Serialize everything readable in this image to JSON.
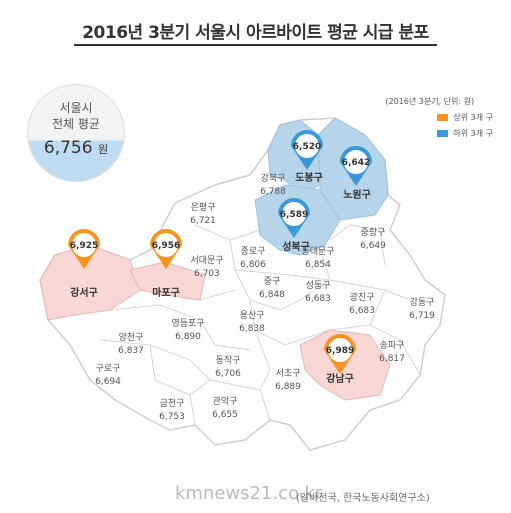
{
  "title": "2016년 3분기 서울시 아르바이트 평균 시급 분포",
  "average": {
    "line1": "서울시",
    "line2": "전체 평균",
    "value": "6,756",
    "unit": "원"
  },
  "legend": {
    "note": "(2016년 3분기, 단위: 원)",
    "items": [
      {
        "label": "상위 3개 구",
        "color": "#f7931e"
      },
      {
        "label": "하위 3개 구",
        "color": "#3a9ad9"
      }
    ]
  },
  "districts": [
    {
      "name": "은평구",
      "value": "6,721"
    },
    {
      "name": "강북구",
      "value": "6,788"
    },
    {
      "name": "서대문구",
      "value": "6,703"
    },
    {
      "name": "종로구",
      "value": "6,806"
    },
    {
      "name": "동대문구",
      "value": "6,854"
    },
    {
      "name": "중랑구",
      "value": "6,649"
    },
    {
      "name": "중구",
      "value": "6,848"
    },
    {
      "name": "성동구",
      "value": "6,683"
    },
    {
      "name": "광진구",
      "value": "6,683"
    },
    {
      "name": "강동구",
      "value": "6,719"
    },
    {
      "name": "용산구",
      "value": "6,838"
    },
    {
      "name": "양천구",
      "value": "6,837"
    },
    {
      "name": "영등포구",
      "value": "6,890"
    },
    {
      "name": "구로구",
      "value": "6,694"
    },
    {
      "name": "동작구",
      "value": "6,706"
    },
    {
      "name": "서초구",
      "value": "6,889"
    },
    {
      "name": "송파구",
      "value": "6,817"
    },
    {
      "name": "금천구",
      "value": "6,753"
    },
    {
      "name": "관악구",
      "value": "6,655"
    }
  ],
  "highlighted": [
    {
      "name": "강서구",
      "value": "6,925",
      "group": "top"
    },
    {
      "name": "마포구",
      "value": "6,956",
      "group": "top"
    },
    {
      "name": "강남구",
      "value": "6,989",
      "group": "top"
    },
    {
      "name": "도봉구",
      "value": "6,520",
      "group": "bottom"
    },
    {
      "name": "노원구",
      "value": "6,642",
      "group": "bottom"
    },
    {
      "name": "성북구",
      "value": "6,589",
      "group": "bottom"
    }
  ],
  "colors": {
    "top_fill": "#f8d7d4",
    "bottom_fill": "#b7d5ea",
    "base_fill": "#ffffff",
    "outline": "#cfcfcf"
  },
  "watermark": "kmnews21.co.kr",
  "source": "(알바천국, 한국노동사회연구소)"
}
